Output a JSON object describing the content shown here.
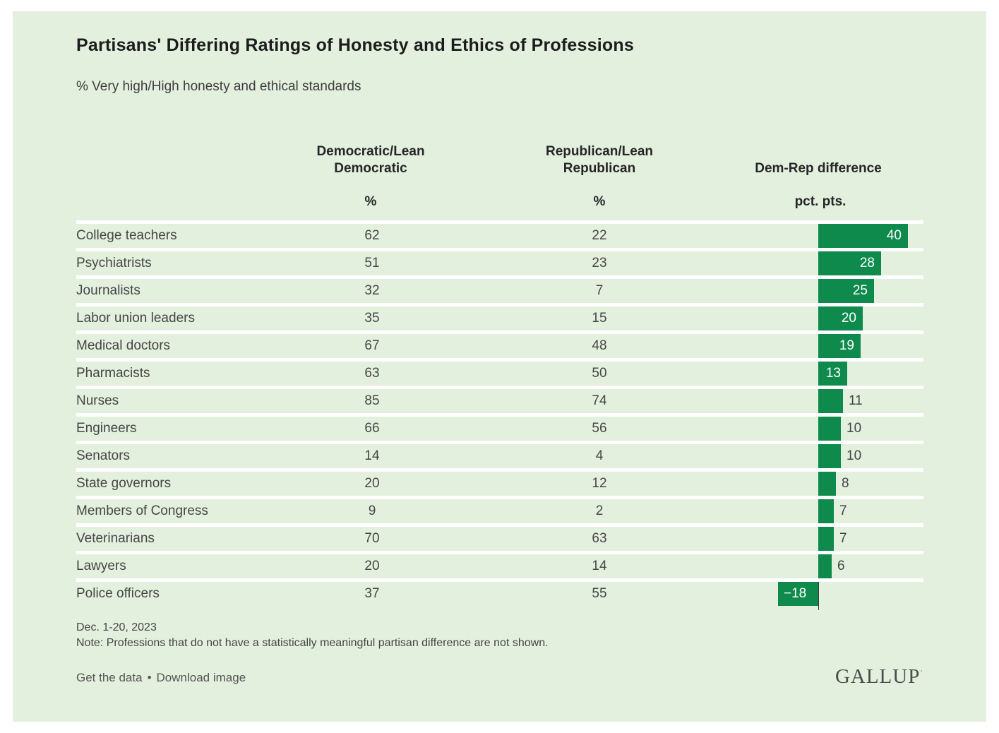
{
  "header": {
    "title": "Partisans' Differing Ratings of Honesty and Ethics of Professions",
    "subtitle": "% Very high/High honesty and ethical standards"
  },
  "columns": {
    "dem": {
      "label_line1": "Democratic/Lean",
      "label_line2": "Democratic",
      "unit": "%"
    },
    "rep": {
      "label_line1": "Republican/Lean",
      "label_line2": "Republican",
      "unit": "%"
    },
    "diff": {
      "label": "Dem-Rep difference",
      "unit": "pct. pts."
    }
  },
  "chart_data": {
    "type": "bar",
    "title": "Partisans' Differing Ratings of Honesty and Ethics of Professions",
    "subtitle": "% Very high/High honesty and ethical standards",
    "categories": [
      "College teachers",
      "Psychiatrists",
      "Journalists",
      "Labor union leaders",
      "Medical doctors",
      "Pharmacists",
      "Nurses",
      "Engineers",
      "Senators",
      "State governors",
      "Members of Congress",
      "Veterinarians",
      "Lawyers",
      "Police officers"
    ],
    "series": [
      {
        "name": "Democratic/Lean Democratic",
        "unit": "%",
        "values": [
          62,
          51,
          32,
          35,
          67,
          63,
          85,
          66,
          14,
          20,
          9,
          70,
          20,
          37
        ]
      },
      {
        "name": "Republican/Lean Republican",
        "unit": "%",
        "values": [
          22,
          23,
          7,
          15,
          48,
          50,
          74,
          56,
          4,
          12,
          2,
          63,
          14,
          55
        ]
      },
      {
        "name": "Dem-Rep difference",
        "unit": "pct. pts.",
        "values": [
          40,
          28,
          25,
          20,
          19,
          13,
          11,
          10,
          10,
          8,
          7,
          7,
          6,
          -18
        ]
      }
    ],
    "bar_axis": {
      "baseline": 0,
      "min": -18,
      "max": 40
    },
    "legend_position": "none",
    "grid": "white-row-separators"
  },
  "footer": {
    "date": "Dec. 1-20, 2023",
    "note": "Note: Professions that do not have a statistically meaningful partisan difference are not shown.",
    "links": [
      {
        "label": "Get the data"
      },
      {
        "label": "Download image"
      }
    ],
    "links_separator": "•",
    "logo": "GALLUP"
  },
  "colors": {
    "panel_bg": "#e3f0de",
    "bar_green": "#0e8a4d",
    "bar_label_inside": "#ffffff",
    "bar_label_outside": "#464646",
    "baseline": "#3a3a3a"
  }
}
